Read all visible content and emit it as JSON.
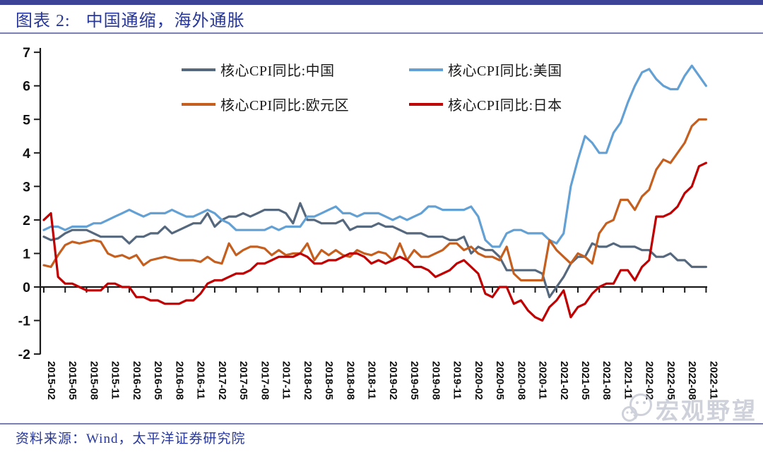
{
  "header": {
    "figure_label": "图表 2:",
    "title": "中国通缩，海外通胀"
  },
  "source": {
    "text": "资料来源：Wind，太平洋证券研究院"
  },
  "watermark": {
    "text": "宏观野望",
    "logo": "wechat-bubbles"
  },
  "colors": {
    "accent_bar": "#3d4396",
    "rule": "#7a7fb5",
    "title_text": "#27379b",
    "axis": "#1a1a1a"
  },
  "chart_data": {
    "type": "line",
    "title": "中国通缩，海外通胀",
    "x_unit": "month",
    "x_start": "2015-02",
    "x_end": "2022-11",
    "ylim": [
      -2,
      7
    ],
    "yticks": [
      -2,
      -1,
      0,
      1,
      2,
      3,
      4,
      5,
      6,
      7
    ],
    "grid": false,
    "legend_position": "top-inside",
    "xtick_labels": [
      "2015-02",
      "2015-05",
      "2015-08",
      "2015-11",
      "2016-02",
      "2016-05",
      "2016-08",
      "2016-11",
      "2017-02",
      "2017-05",
      "2017-08",
      "2017-11",
      "2018-02",
      "2018-05",
      "2018-08",
      "2018-11",
      "2019-02",
      "2019-05",
      "2019-08",
      "2019-11",
      "2020-02",
      "2020-05",
      "2020-08",
      "2020-11",
      "2021-02",
      "2021-05",
      "2021-08",
      "2021-11",
      "2022-02",
      "2022-05",
      "2022-08",
      "2022-11"
    ],
    "series": [
      {
        "name": "核心CPI同比:中国",
        "color": "#55687d",
        "values": [
          1.5,
          1.4,
          1.45,
          1.6,
          1.7,
          1.7,
          1.7,
          1.6,
          1.5,
          1.5,
          1.5,
          1.5,
          1.3,
          1.5,
          1.5,
          1.6,
          1.6,
          1.8,
          1.6,
          1.7,
          1.8,
          1.9,
          1.9,
          2.2,
          1.8,
          2.0,
          2.1,
          2.1,
          2.2,
          2.1,
          2.2,
          2.3,
          2.3,
          2.3,
          2.2,
          1.9,
          2.5,
          2.0,
          2.0,
          1.9,
          1.9,
          1.9,
          2.0,
          1.7,
          1.8,
          1.8,
          1.8,
          1.9,
          1.8,
          1.8,
          1.7,
          1.6,
          1.6,
          1.6,
          1.5,
          1.5,
          1.5,
          1.4,
          1.4,
          1.5,
          1.0,
          1.2,
          1.1,
          1.1,
          0.9,
          0.5,
          0.5,
          0.5,
          0.5,
          0.5,
          0.4,
          -0.3,
          0.0,
          0.3,
          0.7,
          0.9,
          0.9,
          1.3,
          1.2,
          1.2,
          1.3,
          1.2,
          1.2,
          1.2,
          1.1,
          1.1,
          0.9,
          0.9,
          1.0,
          0.8,
          0.8,
          0.6,
          0.6,
          0.6
        ]
      },
      {
        "name": "核心CPI同比:美国",
        "color": "#63a0d4",
        "values": [
          1.7,
          1.8,
          1.8,
          1.7,
          1.8,
          1.8,
          1.8,
          1.9,
          1.9,
          2.0,
          2.1,
          2.2,
          2.3,
          2.2,
          2.1,
          2.2,
          2.2,
          2.2,
          2.3,
          2.2,
          2.1,
          2.1,
          2.2,
          2.3,
          2.2,
          2.0,
          1.9,
          1.7,
          1.7,
          1.7,
          1.7,
          1.7,
          1.8,
          1.7,
          1.8,
          1.8,
          1.8,
          2.1,
          2.1,
          2.2,
          2.3,
          2.4,
          2.2,
          2.2,
          2.1,
          2.2,
          2.2,
          2.2,
          2.1,
          2.0,
          2.1,
          2.0,
          2.1,
          2.2,
          2.4,
          2.4,
          2.3,
          2.3,
          2.3,
          2.3,
          2.4,
          2.1,
          1.4,
          1.2,
          1.2,
          1.6,
          1.7,
          1.7,
          1.6,
          1.6,
          1.6,
          1.4,
          1.3,
          1.6,
          3.0,
          3.8,
          4.5,
          4.3,
          4.0,
          4.0,
          4.6,
          4.9,
          5.5,
          6.0,
          6.4,
          6.5,
          6.2,
          6.0,
          5.9,
          5.9,
          6.3,
          6.6,
          6.3,
          6.0
        ]
      },
      {
        "name": "核心CPI同比:欧元区",
        "color": "#c55f1f",
        "values": [
          0.65,
          0.6,
          0.95,
          1.25,
          1.35,
          1.3,
          1.35,
          1.4,
          1.35,
          1.0,
          0.9,
          0.95,
          0.85,
          0.95,
          0.65,
          0.8,
          0.85,
          0.9,
          0.85,
          0.8,
          0.8,
          0.8,
          0.75,
          0.9,
          0.75,
          0.7,
          1.3,
          0.95,
          1.1,
          1.2,
          1.2,
          1.15,
          0.95,
          1.1,
          0.95,
          1.0,
          1.0,
          1.3,
          0.8,
          1.1,
          0.95,
          1.1,
          0.95,
          0.9,
          1.1,
          1.0,
          0.95,
          1.05,
          1.0,
          0.8,
          1.3,
          0.8,
          1.1,
          0.9,
          0.9,
          1.0,
          1.1,
          1.3,
          1.3,
          1.1,
          1.2,
          1.0,
          0.9,
          0.9,
          0.8,
          1.2,
          0.4,
          0.2,
          0.2,
          0.2,
          0.2,
          1.4,
          1.1,
          0.9,
          0.7,
          1.0,
          0.9,
          0.7,
          1.6,
          1.9,
          2.0,
          2.6,
          2.6,
          2.3,
          2.7,
          2.9,
          3.5,
          3.8,
          3.7,
          4.0,
          4.3,
          4.8,
          5.0,
          5.0
        ]
      },
      {
        "name": "核心CPI同比:日本",
        "color": "#c00000",
        "values": [
          2.0,
          2.2,
          0.3,
          0.1,
          0.1,
          0.0,
          -0.1,
          -0.1,
          -0.1,
          0.1,
          0.1,
          0.0,
          0.0,
          -0.3,
          -0.3,
          -0.4,
          -0.4,
          -0.5,
          -0.5,
          -0.5,
          -0.4,
          -0.4,
          -0.2,
          0.1,
          0.2,
          0.2,
          0.3,
          0.4,
          0.4,
          0.5,
          0.7,
          0.7,
          0.8,
          0.9,
          0.9,
          0.9,
          1.0,
          0.9,
          0.7,
          0.7,
          0.8,
          0.8,
          0.9,
          1.0,
          1.0,
          0.9,
          0.7,
          0.8,
          0.7,
          0.8,
          0.9,
          0.8,
          0.6,
          0.6,
          0.5,
          0.3,
          0.4,
          0.5,
          0.7,
          0.8,
          0.6,
          0.4,
          -0.2,
          -0.3,
          0.0,
          0.0,
          -0.5,
          -0.4,
          -0.7,
          -0.9,
          -1.0,
          -0.6,
          -0.4,
          -0.1,
          -0.9,
          -0.6,
          -0.5,
          -0.2,
          0.0,
          0.1,
          0.1,
          0.5,
          0.5,
          0.2,
          0.6,
          0.8,
          2.1,
          2.1,
          2.2,
          2.4,
          2.8,
          3.0,
          3.6,
          3.7
        ]
      }
    ]
  }
}
